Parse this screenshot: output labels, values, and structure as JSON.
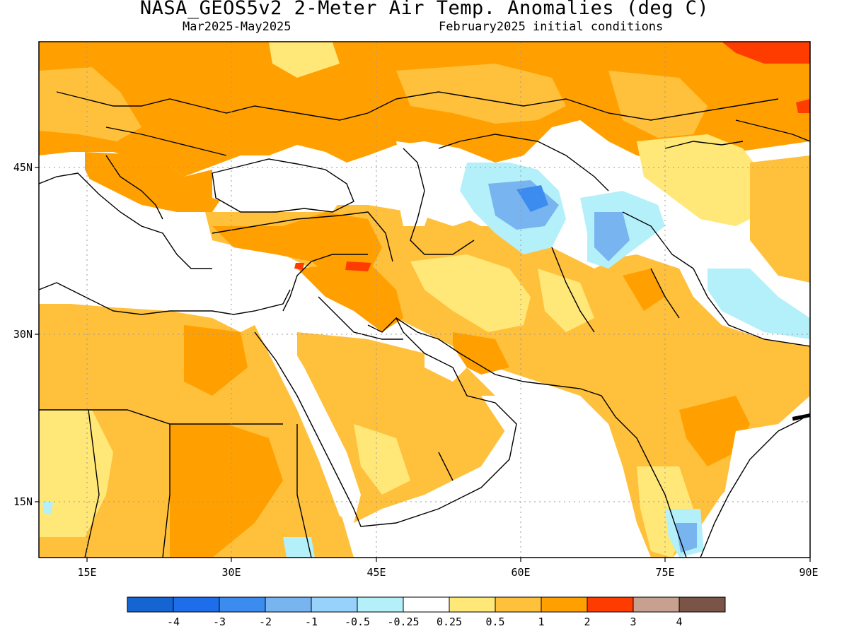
{
  "header": {
    "title": "NASA_GEOS5v2 2-Meter Air Temp. Anomalies (deg C)",
    "period": "Mar2025-May2025",
    "init": "February2025 initial conditions"
  },
  "map": {
    "projection": "lat-lon",
    "lon_range": [
      10,
      90
    ],
    "lat_range": [
      10,
      55
    ],
    "lon_ticks": [
      {
        "value": 15,
        "label": "15E"
      },
      {
        "value": 30,
        "label": "30E"
      },
      {
        "value": 45,
        "label": "45E"
      },
      {
        "value": 60,
        "label": "60E"
      },
      {
        "value": 75,
        "label": "75E"
      },
      {
        "value": 90,
        "label": "90E"
      }
    ],
    "lat_ticks": [
      {
        "value": 45,
        "label": "45N"
      },
      {
        "value": 30,
        "label": "30N"
      },
      {
        "value": 15,
        "label": "15N"
      }
    ],
    "ocean_color": "#ffffff",
    "grid": "dotted"
  },
  "colorbar": {
    "colors": [
      "#1464d2",
      "#1e6eeb",
      "#3c8cf0",
      "#78b4f0",
      "#96d2fa",
      "#b4f0fa",
      "#ffffff",
      "#ffe878",
      "#ffc03c",
      "#ffa000",
      "#ff3c00",
      "#c8a090",
      "#7a5446"
    ],
    "labels": [
      "-4",
      "-3",
      "-2",
      "-1",
      "-0.5",
      "-0.25",
      "0.25",
      "0.5",
      "1",
      "2",
      "3",
      "4"
    ]
  }
}
